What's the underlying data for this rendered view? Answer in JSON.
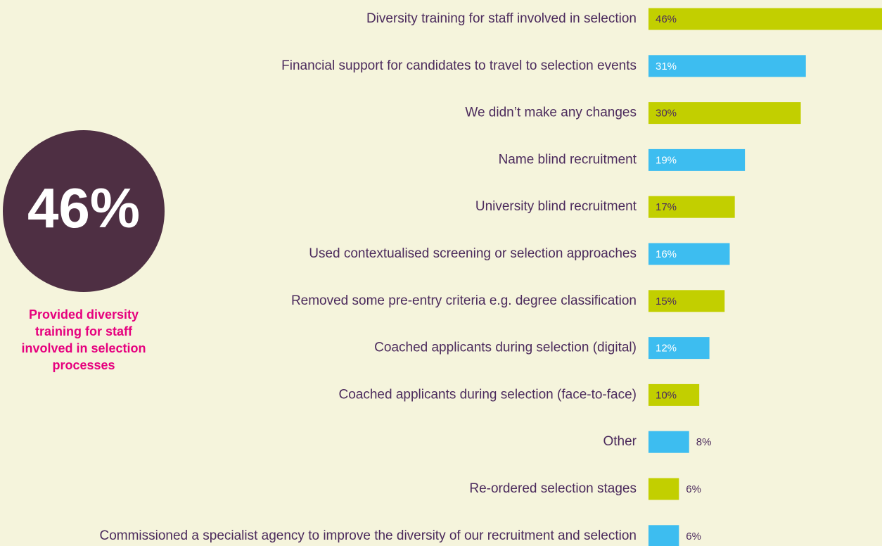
{
  "chart_data": {
    "type": "hbar",
    "categories": [
      "Diversity training for staff involved in selection",
      "Financial support for candidates to travel to selection events",
      "We didn’t make any changes",
      "Name blind recruitment",
      "University blind recruitment",
      "Used contextualised screening or selection approaches",
      "Removed some pre-entry criteria e.g. degree classification",
      "Coached applicants during selection (digital)",
      "Coached applicants during selection (face-to-face)",
      "Other",
      "Re-ordered selection stages",
      "Commissioned a specialist agency to improve the diversity of our recruitment and selection"
    ],
    "values": [
      46,
      31,
      30,
      19,
      17,
      16,
      15,
      12,
      10,
      8,
      6,
      6
    ],
    "value_labels": [
      "46%",
      "31%",
      "30%",
      "19%",
      "17%",
      "16%",
      "15%",
      "12%",
      "10%",
      "8%",
      "6%",
      "6%"
    ],
    "colors": [
      "#c2cf00",
      "#3dbdf0",
      "#c2cf00",
      "#3dbdf0",
      "#c2cf00",
      "#3dbdf0",
      "#c2cf00",
      "#3dbdf0",
      "#c2cf00",
      "#3dbdf0",
      "#c2cf00",
      "#3dbdf0"
    ],
    "xlim": [
      0,
      46
    ],
    "callout": {
      "label": "46%",
      "color": "#4e2f43",
      "text": [
        "Provided diversity",
        "training for staff",
        "involved in selection",
        "processes"
      ],
      "text_color": "#e6007e"
    }
  }
}
